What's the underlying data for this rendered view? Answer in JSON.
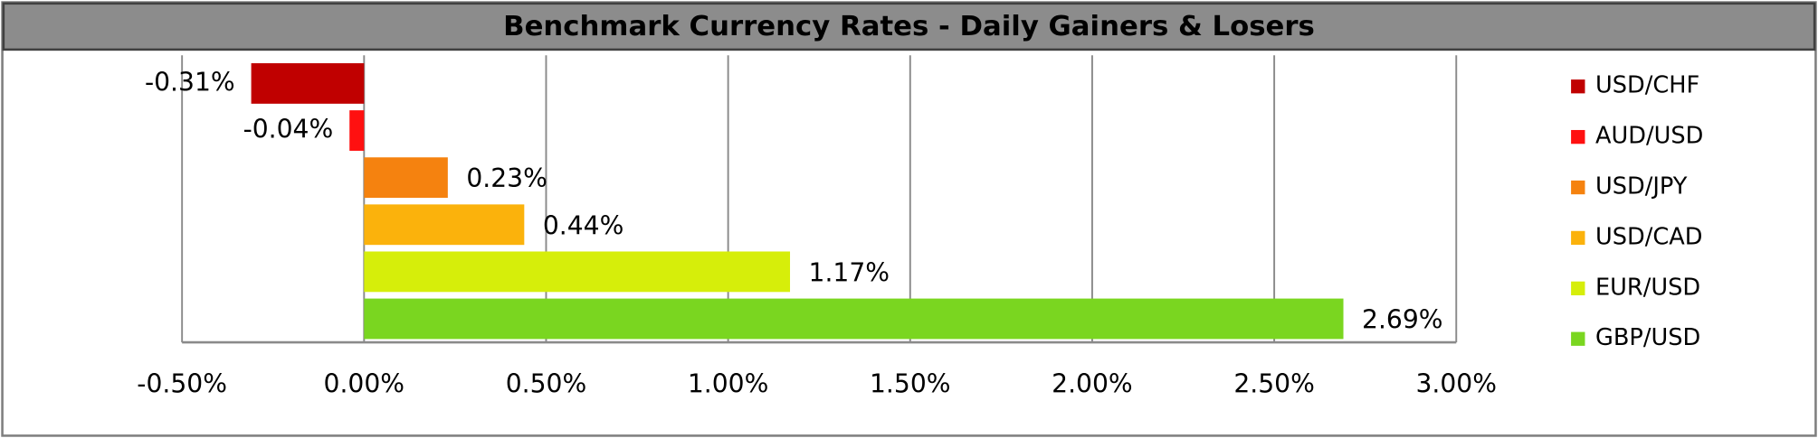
{
  "chart_data": {
    "type": "bar",
    "orientation": "horizontal",
    "title": "Benchmark Currency Rates - Daily Gainers & Losers",
    "categories": [
      "USD/CHF",
      "AUD/USD",
      "USD/JPY",
      "USD/CAD",
      "EUR/USD",
      "GBP/USD"
    ],
    "values": [
      -0.31,
      -0.04,
      0.23,
      0.44,
      1.17,
      2.69
    ],
    "value_labels": [
      "-0.31%",
      "-0.04%",
      "0.23%",
      "0.44%",
      "1.17%",
      "2.69%"
    ],
    "colors": [
      "#c00000",
      "#ff1010",
      "#f5820f",
      "#fbb20c",
      "#d6ee0a",
      "#7ad620"
    ],
    "xlim": [
      -0.5,
      3.0
    ],
    "xticks": [
      {
        "value": -0.5,
        "label": "-0.50%"
      },
      {
        "value": 0.0,
        "label": "0.00%"
      },
      {
        "value": 0.5,
        "label": "0.50%"
      },
      {
        "value": 1.0,
        "label": "1.00%"
      },
      {
        "value": 1.5,
        "label": "1.50%"
      },
      {
        "value": 2.0,
        "label": "2.00%"
      },
      {
        "value": 2.5,
        "label": "2.50%"
      },
      {
        "value": 3.0,
        "label": "3.00%"
      }
    ],
    "grid": true,
    "legend": "right"
  }
}
